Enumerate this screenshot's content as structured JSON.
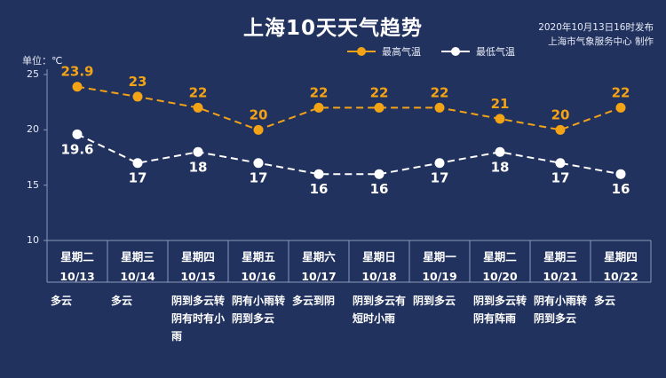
{
  "header": {
    "title": "上海10天天气趋势",
    "publish_time": "2020年10月13日16时发布",
    "publisher": "上海市气象服务中心 制作",
    "unit_label": "单位：℃"
  },
  "colors": {
    "background": "#22325f",
    "high": "#f2a316",
    "low": "#ffffff",
    "grid": "#8c9ab8"
  },
  "days": [
    {
      "weekday": "星期二",
      "date": "10/13",
      "weather": "多云"
    },
    {
      "weekday": "星期三",
      "date": "10/14",
      "weather": "多云"
    },
    {
      "weekday": "星期四",
      "date": "10/15",
      "weather": "阴到多云转阴有时有小雨"
    },
    {
      "weekday": "星期五",
      "date": "10/16",
      "weather": "阴有小雨转阴到多云"
    },
    {
      "weekday": "星期六",
      "date": "10/17",
      "weather": "多云到阴"
    },
    {
      "weekday": "星期日",
      "date": "10/18",
      "weather": "阴到多云有短时小雨"
    },
    {
      "weekday": "星期一",
      "date": "10/19",
      "weather": "阴到多云"
    },
    {
      "weekday": "星期二",
      "date": "10/20",
      "weather": "阴到多云转阴有阵雨"
    },
    {
      "weekday": "星期三",
      "date": "10/21",
      "weather": "阴有小雨转阴到多云"
    },
    {
      "weekday": "星期四",
      "date": "10/22",
      "weather": "多云"
    }
  ],
  "chart_data": {
    "type": "line",
    "x": [
      "10/13",
      "10/14",
      "10/15",
      "10/16",
      "10/17",
      "10/18",
      "10/19",
      "10/20",
      "10/21",
      "10/22"
    ],
    "series": [
      {
        "name": "最高气温",
        "values": [
          23.9,
          23,
          22,
          20,
          22,
          22,
          22,
          21,
          20,
          22
        ],
        "labels": [
          "23.9",
          "23",
          "22",
          "20",
          "22",
          "22",
          "22",
          "21",
          "20",
          "22"
        ]
      },
      {
        "name": "最低气温",
        "values": [
          19.6,
          17,
          18,
          17,
          16,
          16,
          17,
          18,
          17,
          16
        ],
        "labels": [
          "19.6",
          "17",
          "18",
          "17",
          "16",
          "16",
          "17",
          "18",
          "17",
          "16"
        ]
      }
    ],
    "yticks": [
      "25",
      "20",
      "15",
      "10"
    ],
    "ylim": [
      10,
      25
    ],
    "legend_position": "top-right",
    "grid": false,
    "line_style": "dashed"
  }
}
